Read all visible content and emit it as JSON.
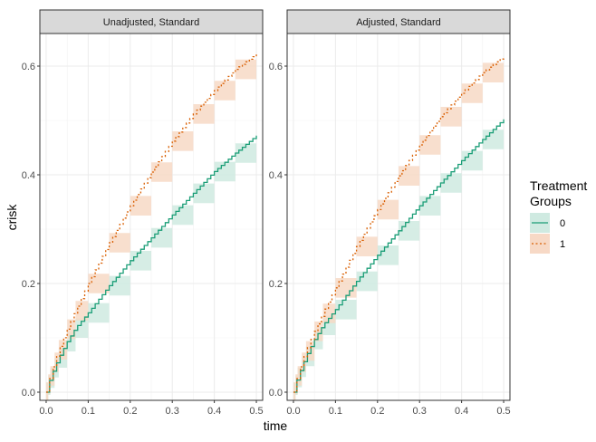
{
  "chart_data": {
    "type": "line",
    "xlabel": "time",
    "ylabel": "crisk",
    "xlim": [
      -0.015,
      0.515
    ],
    "ylim": [
      -0.015,
      0.66
    ],
    "x_ticks": [
      0.0,
      0.1,
      0.2,
      0.3,
      0.4,
      0.5
    ],
    "x_tick_labels": [
      "0.0",
      "0.1",
      "0.2",
      "0.3",
      "0.4",
      "0.5"
    ],
    "y_ticks": [
      0.0,
      0.2,
      0.4,
      0.6
    ],
    "y_tick_labels": [
      "0.0",
      "0.2",
      "0.4",
      "0.6"
    ],
    "grid": true,
    "legend": {
      "title_lines": [
        "Treatment",
        "Groups"
      ],
      "position": "right",
      "entries": [
        {
          "label": "0",
          "color": "#1B9E77",
          "fill": "#CFEAE1",
          "linetype": "solid"
        },
        {
          "label": "1",
          "color": "#D95F02",
          "fill": "#F7D9C6",
          "linetype": "dotted"
        }
      ]
    },
    "panels": [
      {
        "strip": "Unadjusted, Standard",
        "series": [
          {
            "name": "0",
            "x": [
              0.0,
              0.005,
              0.01,
              0.02,
              0.03,
              0.05,
              0.07,
              0.1,
              0.15,
              0.2,
              0.25,
              0.3,
              0.35,
              0.4,
              0.45,
              0.5
            ],
            "y": [
              0.0,
              0.013,
              0.026,
              0.045,
              0.063,
              0.093,
              0.118,
              0.146,
              0.196,
              0.242,
              0.284,
              0.326,
              0.366,
              0.406,
              0.44,
              0.472
            ],
            "band": 0.018
          },
          {
            "name": "1",
            "x": [
              0.0,
              0.005,
              0.01,
              0.02,
              0.03,
              0.05,
              0.07,
              0.1,
              0.15,
              0.2,
              0.25,
              0.3,
              0.35,
              0.4,
              0.45,
              0.5
            ],
            "y": [
              0.0,
              0.015,
              0.03,
              0.055,
              0.078,
              0.116,
              0.15,
              0.2,
              0.275,
              0.343,
              0.405,
              0.462,
              0.512,
              0.555,
              0.594,
              0.622
            ],
            "band": 0.018
          }
        ]
      },
      {
        "strip": "Adjusted, Standard",
        "series": [
          {
            "name": "0",
            "x": [
              0.0,
              0.005,
              0.01,
              0.02,
              0.03,
              0.05,
              0.07,
              0.1,
              0.15,
              0.2,
              0.25,
              0.3,
              0.35,
              0.4,
              0.45,
              0.5
            ],
            "y": [
              0.0,
              0.013,
              0.027,
              0.046,
              0.066,
              0.097,
              0.123,
              0.152,
              0.204,
              0.252,
              0.297,
              0.343,
              0.385,
              0.426,
              0.465,
              0.502
            ],
            "band": 0.018
          },
          {
            "name": "1",
            "x": [
              0.0,
              0.005,
              0.01,
              0.02,
              0.03,
              0.05,
              0.07,
              0.1,
              0.15,
              0.2,
              0.25,
              0.3,
              0.35,
              0.4,
              0.45,
              0.5
            ],
            "y": [
              0.0,
              0.015,
              0.03,
              0.055,
              0.076,
              0.112,
              0.145,
              0.192,
              0.268,
              0.336,
              0.398,
              0.455,
              0.507,
              0.55,
              0.588,
              0.618
            ],
            "band": 0.018
          }
        ]
      }
    ]
  }
}
